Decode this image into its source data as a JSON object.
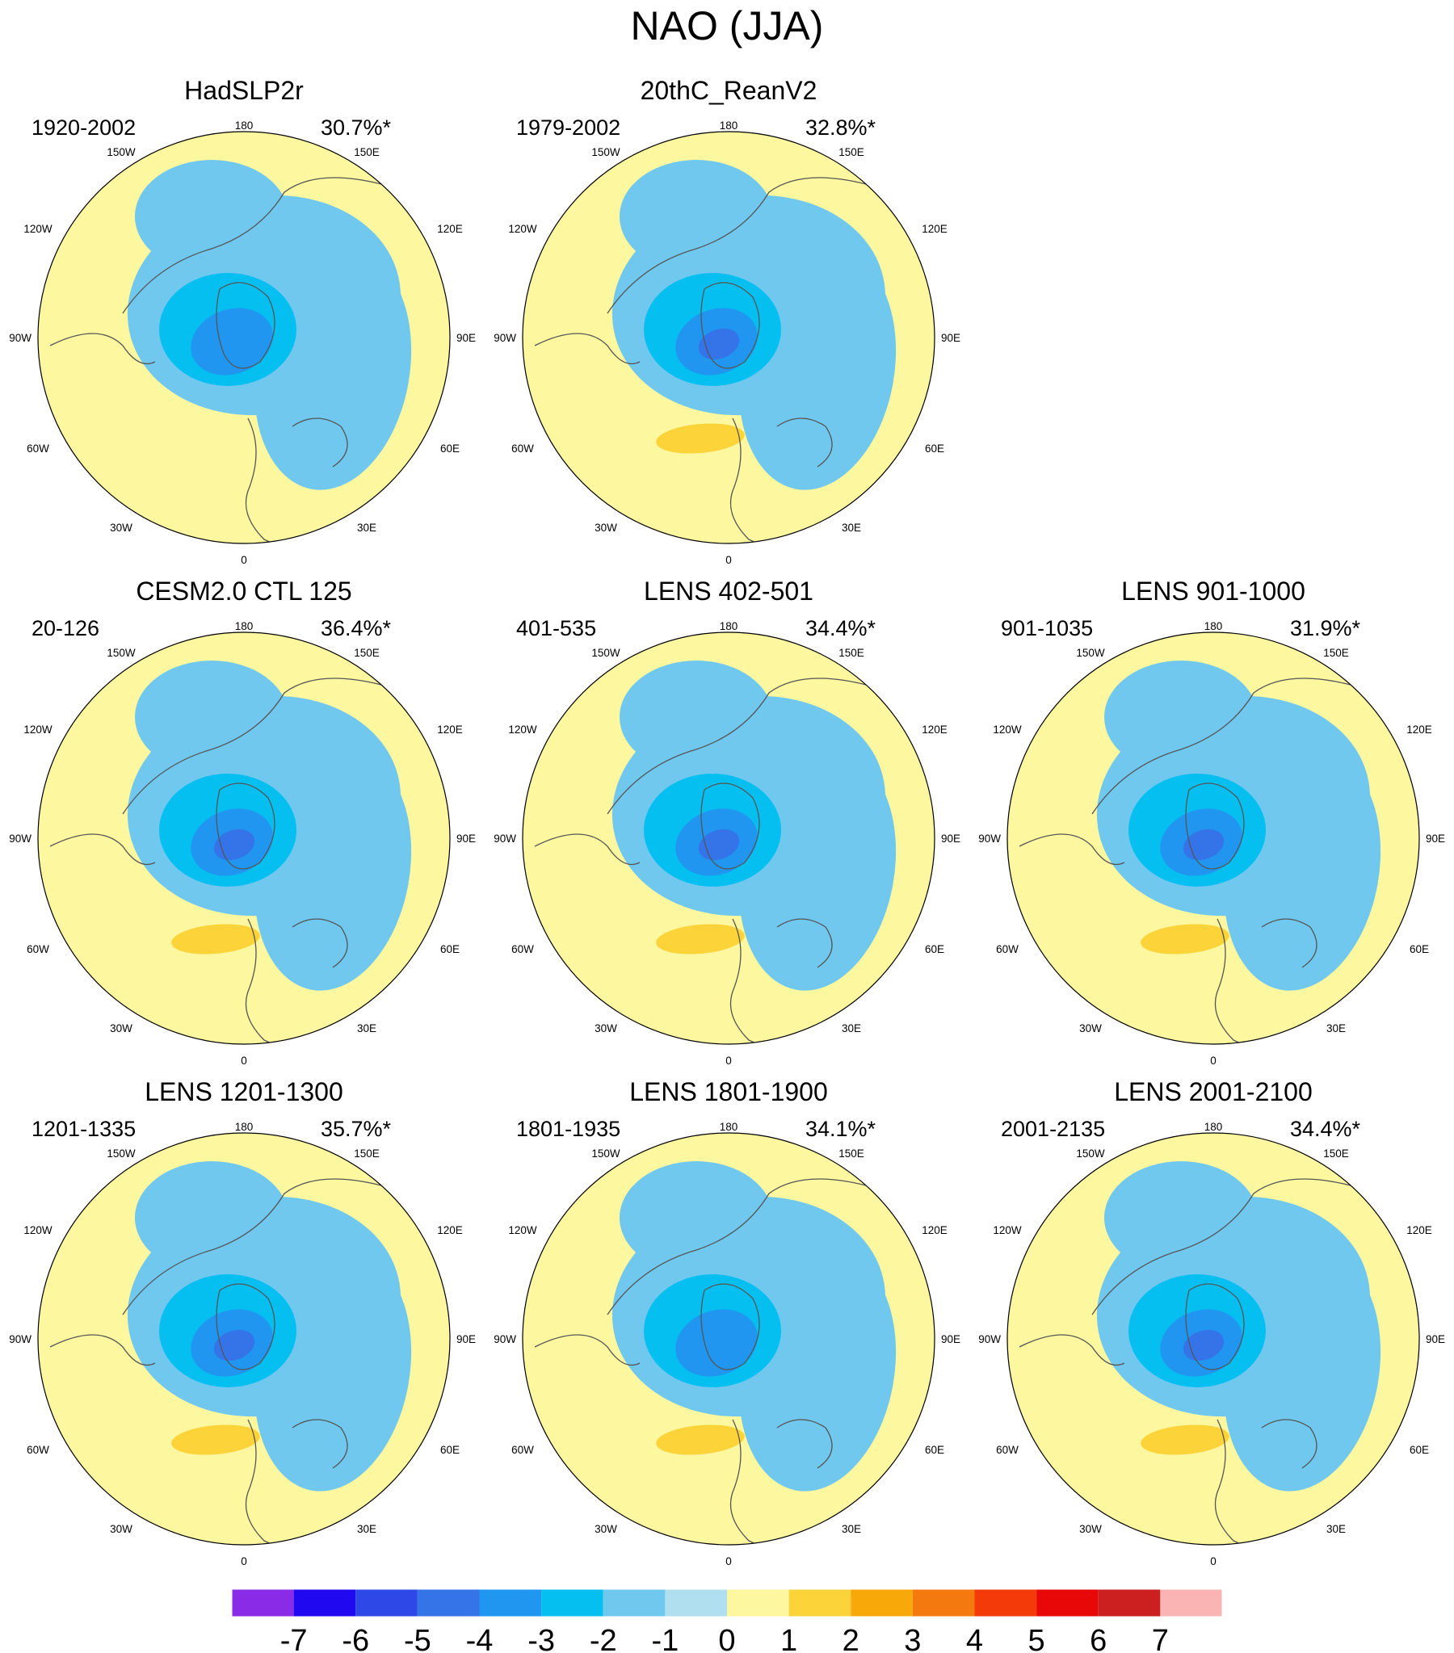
{
  "chart_data": {
    "type": "polar-stereographic contour maps",
    "title": "NAO (JJA)",
    "units_colorbar": [
      -7,
      -6,
      -5,
      -4,
      -3,
      -2,
      -1,
      0,
      1,
      2,
      3,
      4,
      5,
      6,
      7
    ],
    "colorbar_labels": [
      "-7",
      "-6",
      "-5",
      "-4",
      "-3",
      "-2",
      "-1",
      "0",
      "1",
      "2",
      "3",
      "4",
      "5",
      "6",
      "7"
    ],
    "colorbar_colors": [
      "#8a2be8",
      "#2008f0",
      "#2e48e8",
      "#3473e8",
      "#2196f0",
      "#05bff0",
      "#70c8ef",
      "#b0dff0",
      "#fdf7a0",
      "#fcd43a",
      "#f8a808",
      "#f47a10",
      "#f53a0a",
      "#e80808",
      "#cc1f1f",
      "#fbb4b4"
    ],
    "longitude_labels": [
      "180",
      "150W",
      "150E",
      "120W",
      "120E",
      "90W",
      "90E",
      "60W",
      "60E",
      "30W",
      "30E",
      "0"
    ],
    "panels": [
      {
        "id": "hadslp2r",
        "title": "HadSLP2r",
        "period": "1920-2002",
        "variance": "30.7%*",
        "min_level": -3,
        "max_level": 1
      },
      {
        "id": "20thc",
        "title": "20thC_ReanV2",
        "period": "1979-2002",
        "variance": "32.8%*",
        "min_level": -4,
        "max_level": 2
      },
      {
        "id": "cesm-ctl",
        "title": "CESM2.0 CTL 125",
        "period": "20-126",
        "variance": "36.4%*",
        "min_level": -4,
        "max_level": 2
      },
      {
        "id": "lens-402",
        "title": "LENS 402-501",
        "period": "401-535",
        "variance": "34.4%*",
        "min_level": -4,
        "max_level": 2
      },
      {
        "id": "lens-901",
        "title": "LENS 901-1000",
        "period": "901-1035",
        "variance": "31.9%*",
        "min_level": -4,
        "max_level": 2
      },
      {
        "id": "lens-1201",
        "title": "LENS 1201-1300",
        "period": "1201-1335",
        "variance": "35.7%*",
        "min_level": -4,
        "max_level": 2
      },
      {
        "id": "lens-1801",
        "title": "LENS 1801-1900",
        "period": "1801-1935",
        "variance": "34.1%*",
        "min_level": -3,
        "max_level": 2
      },
      {
        "id": "lens-2001",
        "title": "LENS 2001-2100",
        "period": "2001-2135",
        "variance": "34.4%*",
        "min_level": -4,
        "max_level": 2
      }
    ]
  }
}
